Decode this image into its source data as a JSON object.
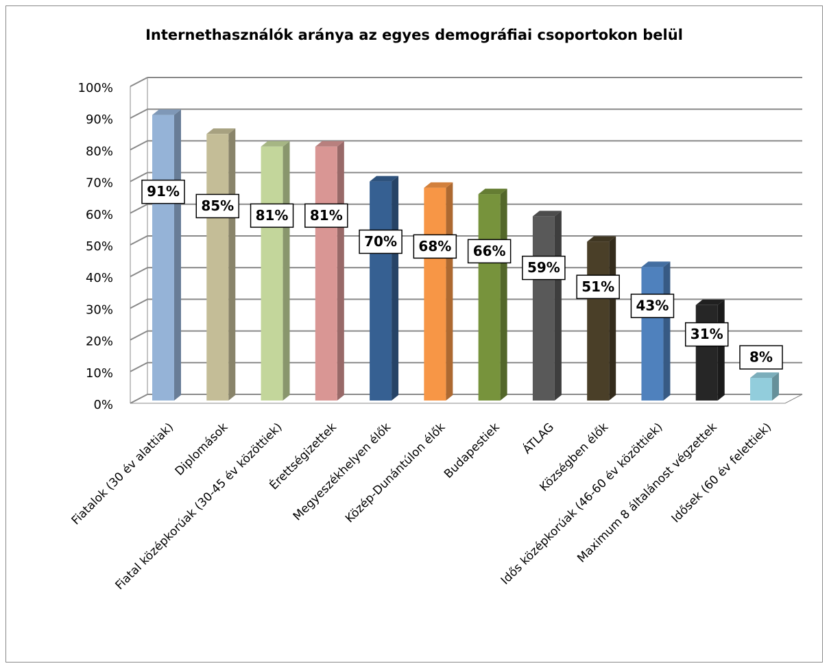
{
  "chart_data": {
    "type": "bar3d",
    "title": "Internethasználók aránya az egyes demográfiai csoportokon belül",
    "categories": [
      "Fiatalok (30 év alattiak)",
      "Diplomások",
      "Fiatal középkorúak (30-45 év közöttiek)",
      "Érettségizettek",
      "Megyeszékhelyen élők",
      "Közép-Dunántúlon élők",
      "Budapestiek",
      "ÁTLAG",
      "Községben élők",
      "Idős középkorúak (46-60 év közöttiek)",
      "Maximum 8 általánost végzettek",
      "Idősek (60 év felettiek)"
    ],
    "values": [
      91,
      85,
      81,
      81,
      70,
      68,
      66,
      59,
      51,
      43,
      31,
      8
    ],
    "value_labels": [
      "91%",
      "85%",
      "81%",
      "81%",
      "70%",
      "68%",
      "66%",
      "59%",
      "51%",
      "43%",
      "31%",
      "8%"
    ],
    "colors": [
      "#95b3d7",
      "#c4bd97",
      "#c3d69b",
      "#d99694",
      "#366092",
      "#f79646",
      "#77933c",
      "#595959",
      "#4a3f28",
      "#4f81bd",
      "#262626",
      "#92cddc"
    ],
    "ylim": [
      0,
      100
    ],
    "yticks": [
      {
        "value": 0,
        "label": "0%"
      },
      {
        "value": 10,
        "label": "10%"
      },
      {
        "value": 20,
        "label": "20%"
      },
      {
        "value": 30,
        "label": "30%"
      },
      {
        "value": 40,
        "label": "40%"
      },
      {
        "value": 50,
        "label": "50%"
      },
      {
        "value": 60,
        "label": "60%"
      },
      {
        "value": 70,
        "label": "70%"
      },
      {
        "value": 80,
        "label": "80%"
      },
      {
        "value": 90,
        "label": "90%"
      },
      {
        "value": 100,
        "label": "100%"
      }
    ],
    "grid": true
  }
}
